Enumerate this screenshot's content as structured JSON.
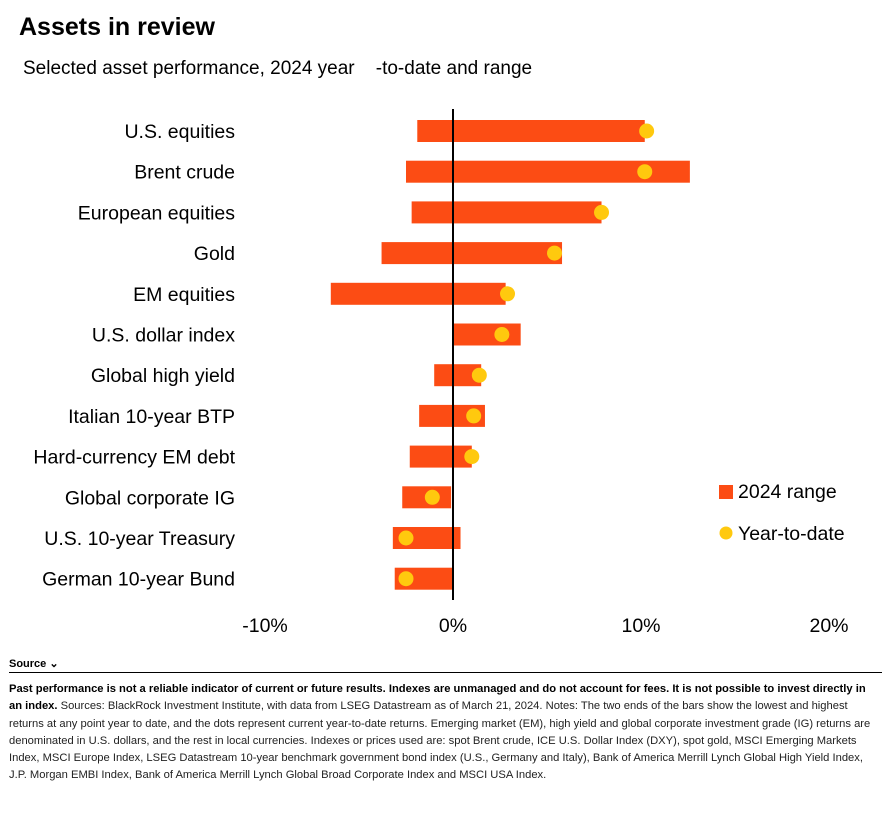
{
  "header": {
    "title": "Assets in review",
    "subtitle": "Selected asset performance, 2024 year    -to-date and range"
  },
  "colors": {
    "range": "#fc4c14",
    "ytd": "#ffc90e",
    "zero_line": "#000000"
  },
  "chart_data": {
    "type": "bar",
    "orientation": "horizontal",
    "categories": [
      "U.S. equities",
      "Brent crude",
      "European equities",
      "Gold",
      "EM equities",
      "U.S. dollar index",
      "Global high yield",
      "Italian 10-year BTP",
      "Hard-currency EM debt",
      "Global corporate IG",
      "U.S. 10-year Treasury",
      "German 10-year Bund"
    ],
    "series": [
      {
        "name": "2024 range",
        "kind": "range",
        "low": [
          -1.9,
          -2.5,
          -2.2,
          -3.8,
          -6.5,
          0.0,
          -1.0,
          -1.8,
          -2.3,
          -2.7,
          -3.2,
          -3.1
        ],
        "high": [
          10.2,
          12.6,
          7.9,
          5.8,
          2.8,
          3.6,
          1.5,
          1.7,
          1.0,
          -0.1,
          0.4,
          0.0
        ]
      },
      {
        "name": "Year-to-date",
        "kind": "point",
        "values": [
          10.3,
          10.2,
          7.9,
          5.4,
          2.9,
          2.6,
          1.4,
          1.1,
          1.0,
          -1.1,
          -2.5,
          -2.5
        ]
      }
    ],
    "x_ticks": [
      "-10%",
      "0%",
      "10%",
      "20%"
    ],
    "xlim": [
      -10,
      20
    ],
    "legend": {
      "position": "right",
      "items": [
        "2024 range",
        "Year-to-date"
      ]
    },
    "grid": false
  },
  "footer": {
    "source_toggle": "Source ⌄",
    "disclaimer": "Past performance is not a reliable indicator of current or future results. Indexes are unmanaged and do not account for fees. It is not possible to invest directly in an index.",
    "sources": "Sources: BlackRock Investment Institute, with data from LSEG Datastream as of March 21, 2024. Notes: The two ends of the bars show the lowest and highest returns at any point year to date, and the dots represent current year-to-date returns. Emerging market (EM), high yield and global corporate investment grade (IG) returns are denominated in U.S. dollars, and the rest in local currencies. Indexes or prices used are: spot Brent crude, ICE U.S. Dollar Index (DXY), spot gold, MSCI Emerging Markets Index, MSCI Europe Index, LSEG Datastream 10-year benchmark government bond index (U.S., Germany and Italy), Bank of America Merrill Lynch Global High Yield Index, J.P. Morgan EMBI Index, Bank of America Merrill Lynch Global Broad Corporate Index and MSCI USA Index."
  }
}
